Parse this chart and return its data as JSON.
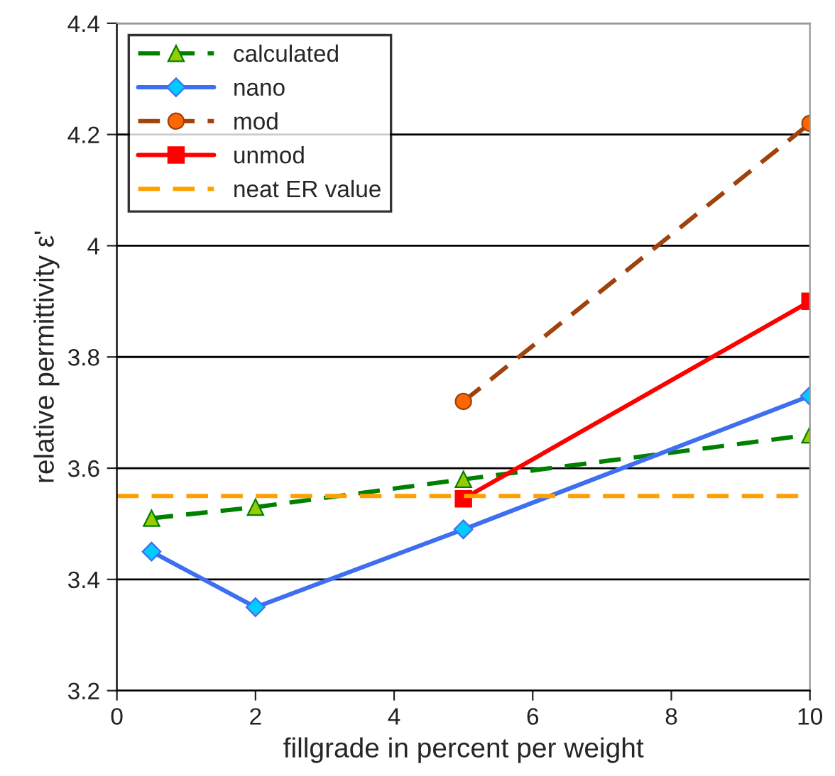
{
  "chart_data": {
    "type": "line",
    "xlabel": "fillgrade in percent per weight",
    "ylabel": "relative permittivity ε'",
    "xlim": [
      0,
      10
    ],
    "xticks": [
      0,
      2,
      4,
      6,
      8,
      10
    ],
    "ylim": [
      3.2,
      4.4
    ],
    "yticks": [
      3.2,
      3.4,
      3.6,
      3.8,
      4,
      4.2,
      4.4
    ],
    "grid": "y",
    "legend": "top left",
    "series": [
      {
        "name": "calculated",
        "color": "#008000",
        "marker": "triangle",
        "line_style": "dashed",
        "x": [
          0.5,
          2,
          5,
          10
        ],
        "values": [
          3.51,
          3.53,
          3.58,
          3.66
        ]
      },
      {
        "name": "nano",
        "color": "#3f6ff0",
        "marker": "diamond",
        "line_style": "solid",
        "x": [
          0.5,
          2,
          5,
          10
        ],
        "values": [
          3.45,
          3.35,
          3.49,
          3.73
        ]
      },
      {
        "name": "mod",
        "color": "#a0420c",
        "marker": "circle",
        "line_style": "dashed",
        "x": [
          5,
          10
        ],
        "values": [
          3.72,
          4.22
        ]
      },
      {
        "name": "unmod",
        "color": "#ff0000",
        "marker": "square",
        "line_style": "solid",
        "x": [
          5,
          10
        ],
        "values": [
          3.545,
          3.9
        ]
      },
      {
        "name": "neat ER value",
        "color": "#ffa000",
        "marker": "none",
        "line_style": "dashed",
        "x": [
          0,
          10
        ],
        "values": [
          3.55,
          3.55
        ]
      }
    ]
  }
}
